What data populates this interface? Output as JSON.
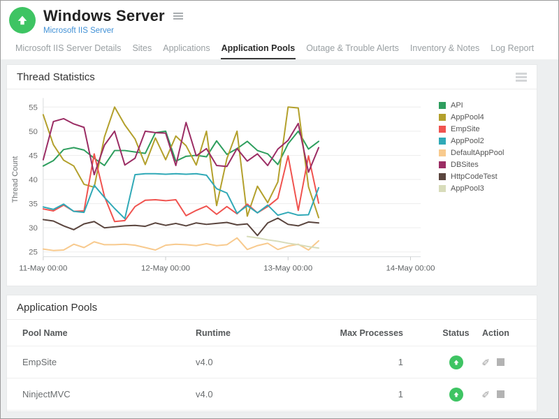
{
  "header": {
    "title": "Windows Server",
    "subtitle": "Microsoft IIS Server",
    "status": "up"
  },
  "tabs": [
    {
      "label": "Microsoft IIS Server Details",
      "active": false
    },
    {
      "label": "Sites",
      "active": false
    },
    {
      "label": "Applications",
      "active": false
    },
    {
      "label": "Application Pools",
      "active": true
    },
    {
      "label": "Outage & Trouble Alerts",
      "active": false
    },
    {
      "label": "Inventory & Notes",
      "active": false
    },
    {
      "label": "Log Report",
      "active": false
    }
  ],
  "chart_panel": {
    "title": "Thread Statistics"
  },
  "chart_data": {
    "type": "line",
    "title": "Thread Statistics",
    "xlabel": "",
    "ylabel": "Thread Count",
    "yticks": [
      25,
      30,
      35,
      40,
      45,
      50,
      55
    ],
    "ylim": [
      25,
      55
    ],
    "y_display_range": [
      24,
      56
    ],
    "grid": true,
    "legend_position": "right",
    "x_tick_labels": [
      "11-May 00:00",
      "12-May 00:00",
      "13-May 00:00",
      "14-May 00:00"
    ],
    "x_ticks_hours": [
      0,
      24,
      48,
      72
    ],
    "x_range_hours": [
      0,
      74
    ],
    "x_hours": [
      0,
      2,
      4,
      6,
      8,
      10,
      12,
      14,
      16,
      18,
      20,
      22,
      24,
      26,
      28,
      30,
      32,
      34,
      36,
      38,
      40,
      42,
      44,
      46,
      48,
      50,
      52,
      54
    ],
    "series": [
      {
        "name": "API",
        "color": "#2e9e5e",
        "values": [
          42.8,
          43.9,
          46.2,
          46.6,
          46.1,
          44.4,
          42.9,
          46.0,
          46.0,
          45.7,
          45.4,
          49.7,
          50.0,
          43.8,
          44.8,
          45.0,
          44.7,
          48.0,
          45.2,
          46.4,
          47.9,
          46.0,
          45.3,
          43.1,
          47.4,
          50.0,
          46.3,
          47.9
        ]
      },
      {
        "name": "AppPool4",
        "color": "#b3a02c",
        "values": [
          53.4,
          47.2,
          44.0,
          42.8,
          39.0,
          38.4,
          48.8,
          55.0,
          51.3,
          48.4,
          43.1,
          48.6,
          44.1,
          49.0,
          47.0,
          43.0,
          50.0,
          34.6,
          44.3,
          50.0,
          32.4,
          38.6,
          35.2,
          39.5,
          55.0,
          54.8,
          38.5,
          32.1
        ]
      },
      {
        "name": "EmpSite",
        "color": "#f0534f",
        "values": [
          33.9,
          33.5,
          34.7,
          33.4,
          33.5,
          45.3,
          36.5,
          31.3,
          31.5,
          34.4,
          35.7,
          35.8,
          35.6,
          35.8,
          32.5,
          33.6,
          34.5,
          32.8,
          34.4,
          32.9,
          34.9,
          33.1,
          34.4,
          36.1,
          44.9,
          33.6,
          44.9,
          35.1
        ]
      },
      {
        "name": "AppPool2",
        "color": "#30a9b7",
        "values": [
          34.3,
          33.8,
          34.9,
          33.4,
          33.2,
          38.8,
          36.3,
          34.0,
          31.9,
          41.0,
          41.2,
          41.2,
          41.1,
          41.2,
          41.1,
          41.2,
          40.9,
          38.1,
          37.2,
          33.0,
          34.6,
          33.1,
          34.7,
          32.6,
          33.2,
          32.6,
          32.7,
          38.3
        ]
      },
      {
        "name": "DefaultAppPool",
        "color": "#f8ca8e",
        "values": [
          25.6,
          25.3,
          25.4,
          26.6,
          25.9,
          27.1,
          26.5,
          26.5,
          26.6,
          26.4,
          25.9,
          25.4,
          26.4,
          26.6,
          26.5,
          26.3,
          26.7,
          26.3,
          26.5,
          27.9,
          25.5,
          26.3,
          26.8,
          25.5,
          26.2,
          26.6,
          25.4,
          27.3
        ]
      },
      {
        "name": "DBSites",
        "color": "#9b2d64",
        "values": [
          44.1,
          52.0,
          52.6,
          51.5,
          50.8,
          41.0,
          47.1,
          50.0,
          43.0,
          44.4,
          50.0,
          49.7,
          49.6,
          42.9,
          51.8,
          44.9,
          46.4,
          42.9,
          42.7,
          46.4,
          43.8,
          45.3,
          42.9,
          46.3,
          48.1,
          51.6,
          41.5,
          46.6
        ]
      },
      {
        "name": "HttpCodeTest",
        "color": "#5a453e",
        "values": [
          31.7,
          31.4,
          30.4,
          29.6,
          30.8,
          31.3,
          30.0,
          30.2,
          30.4,
          30.5,
          30.3,
          31.0,
          30.5,
          30.9,
          30.4,
          31.0,
          30.7,
          30.9,
          31.1,
          30.6,
          30.8,
          28.4,
          31.0,
          32.0,
          30.7,
          30.4,
          31.2,
          31.0
        ]
      },
      {
        "name": "AppPool3",
        "color": "#d8dcba",
        "values": [
          null,
          null,
          null,
          null,
          null,
          null,
          null,
          null,
          null,
          null,
          null,
          null,
          null,
          null,
          null,
          null,
          null,
          null,
          null,
          null,
          28.2,
          27.9,
          27.5,
          27.2,
          26.8,
          26.5,
          26.1,
          25.8
        ]
      }
    ]
  },
  "table_panel": {
    "title": "Application Pools",
    "columns": [
      "Pool Name",
      "Runtime",
      "Max Processes",
      "Status",
      "Action"
    ],
    "rows": [
      {
        "pool_name": "EmpSite",
        "runtime": "v4.0",
        "max_processes": "1",
        "status": "up",
        "actions": [
          "edit",
          "stop"
        ]
      },
      {
        "pool_name": "NinjectMVC",
        "runtime": "v4.0",
        "max_processes": "1",
        "status": "up",
        "actions": [
          "edit",
          "stop"
        ]
      }
    ]
  },
  "colors": {
    "status_green": "#3ec463",
    "body_bg": "#edeff0",
    "link_blue": "#4191d6",
    "grid_line": "#ededed",
    "axis_line": "#d8dbdd",
    "tick_text": "#6f6f6f"
  }
}
